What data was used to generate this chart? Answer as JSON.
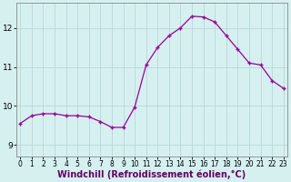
{
  "x": [
    0,
    1,
    2,
    3,
    4,
    5,
    6,
    7,
    8,
    9,
    10,
    11,
    12,
    13,
    14,
    15,
    16,
    17,
    18,
    19,
    20,
    21,
    22,
    23
  ],
  "y": [
    9.55,
    9.75,
    9.8,
    9.8,
    9.75,
    9.75,
    9.72,
    9.6,
    9.45,
    9.45,
    9.97,
    11.05,
    11.5,
    11.8,
    12.0,
    12.3,
    12.28,
    12.15,
    11.8,
    11.45,
    11.1,
    11.05,
    10.65,
    10.45
  ],
  "line_color": "#990099",
  "marker": "+",
  "marker_size": 3,
  "bg_color": "#d6f0f0",
  "grid_color": "#b8d8d8",
  "xlabel": "Windchill (Refroidissement éolien,°C)",
  "xlabel_fontsize": 7,
  "ytick_labels": [
    "9",
    "10",
    "11",
    "12"
  ],
  "ytick_values": [
    9,
    10,
    11,
    12
  ],
  "xticks": [
    0,
    1,
    2,
    3,
    4,
    5,
    6,
    7,
    8,
    9,
    10,
    11,
    12,
    13,
    14,
    15,
    16,
    17,
    18,
    19,
    20,
    21,
    22,
    23
  ],
  "xlim": [
    -0.3,
    23.3
  ],
  "ylim": [
    8.7,
    12.65
  ],
  "xtick_fontsize": 5.5,
  "ytick_fontsize": 6.5,
  "spine_color": "#888888",
  "xlabel_color": "#660066",
  "line_width": 0.9,
  "marker_edge_width": 1.0
}
